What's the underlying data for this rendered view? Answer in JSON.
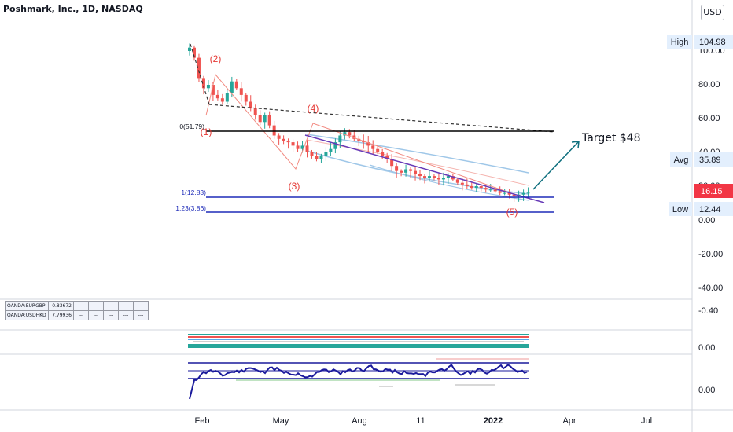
{
  "header": {
    "title": "Poshmark, Inc., 1D, NASDAQ",
    "currency_button": "USD"
  },
  "colors": {
    "bullish": "#26a69a",
    "bearish": "#ef5350",
    "wave_label": "#e53935",
    "fib_line": "#1e2bb8",
    "trend_line": "#673ab7",
    "arrow": "#0e6f7e",
    "price_tag": "#f23645",
    "oscillator": "#1a1a9c"
  },
  "chart_data": {
    "type": "candlestick",
    "title": "Poshmark, Inc., 1D, NASDAQ",
    "x_ticks": [
      "Feb",
      "May",
      "Aug",
      "11",
      "2022",
      "Apr",
      "Jul"
    ],
    "y_ticks": [
      "100.00",
      "80.00",
      "60.00",
      "40.00",
      "20.00",
      "0.00",
      "-20.00",
      "-40.00"
    ],
    "ylim": [
      -47,
      120
    ],
    "approx_close_series": [
      [
        0,
        102
      ],
      [
        1,
        96
      ],
      [
        2,
        84
      ],
      [
        3,
        78
      ],
      [
        4,
        80
      ],
      [
        5,
        74
      ],
      [
        6,
        72
      ],
      [
        7,
        70
      ],
      [
        8,
        75
      ],
      [
        9,
        82
      ],
      [
        10,
        78
      ],
      [
        11,
        74
      ],
      [
        12,
        70
      ],
      [
        13,
        66
      ],
      [
        14,
        62
      ],
      [
        15,
        58
      ],
      [
        16,
        62
      ],
      [
        17,
        56
      ],
      [
        18,
        50
      ],
      [
        19,
        48
      ],
      [
        20,
        47
      ],
      [
        21,
        46
      ],
      [
        22,
        44
      ],
      [
        23,
        42
      ],
      [
        24,
        44
      ],
      [
        25,
        40
      ],
      [
        26,
        38
      ],
      [
        27,
        36
      ],
      [
        28,
        38
      ],
      [
        29,
        40
      ],
      [
        30,
        42
      ],
      [
        31,
        46
      ],
      [
        32,
        50
      ],
      [
        33,
        52
      ],
      [
        34,
        50
      ],
      [
        35,
        48
      ],
      [
        36,
        47
      ],
      [
        37,
        46
      ],
      [
        38,
        44
      ],
      [
        39,
        42
      ],
      [
        40,
        40
      ],
      [
        41,
        38
      ],
      [
        42,
        36
      ],
      [
        43,
        32
      ],
      [
        44,
        29
      ],
      [
        45,
        28
      ],
      [
        46,
        30
      ],
      [
        47,
        29
      ],
      [
        48,
        27
      ],
      [
        49,
        26
      ],
      [
        50,
        25
      ],
      [
        51,
        26
      ],
      [
        52,
        25
      ],
      [
        53,
        24
      ],
      [
        54,
        25
      ],
      [
        55,
        26
      ],
      [
        56,
        24
      ],
      [
        57,
        22
      ],
      [
        58,
        21
      ],
      [
        59,
        20
      ],
      [
        60,
        19
      ],
      [
        61,
        20
      ],
      [
        62,
        19
      ],
      [
        63,
        18
      ],
      [
        64,
        18
      ],
      [
        65,
        17
      ],
      [
        66,
        16
      ],
      [
        67,
        16
      ],
      [
        68,
        15
      ],
      [
        69,
        14
      ],
      [
        70,
        15
      ],
      [
        71,
        16
      ],
      [
        72,
        16.15
      ]
    ],
    "stats": {
      "high": 104.98,
      "avg": 35.89,
      "low": 12.44,
      "last": 16.15
    },
    "fib_levels": [
      {
        "label": "0(51.79)",
        "value": 51.79
      },
      {
        "label": "1(12.83)",
        "value": 12.83
      },
      {
        "label": "1.23(3.86)",
        "value": 3.86
      }
    ],
    "elliott_waves": [
      {
        "label": "(1)",
        "value": 52
      },
      {
        "label": "(2)",
        "value": 86
      },
      {
        "label": "(3)",
        "value": 30
      },
      {
        "label": "(4)",
        "value": 60
      },
      {
        "label": "(5)",
        "value": 10
      }
    ],
    "annotations": {
      "target": "Target $48"
    },
    "side_labels": {
      "high": "High",
      "avg": "Avg",
      "low": "Low"
    },
    "osc_ticks": [
      "-0.40",
      "0.00",
      "0.00"
    ]
  },
  "forex_table": [
    {
      "symbol": "OANDA:EURGBP",
      "value": "0.83672"
    },
    {
      "symbol": "OANDA:USDHKD",
      "value": "7.79936"
    }
  ],
  "table_dash": "---"
}
